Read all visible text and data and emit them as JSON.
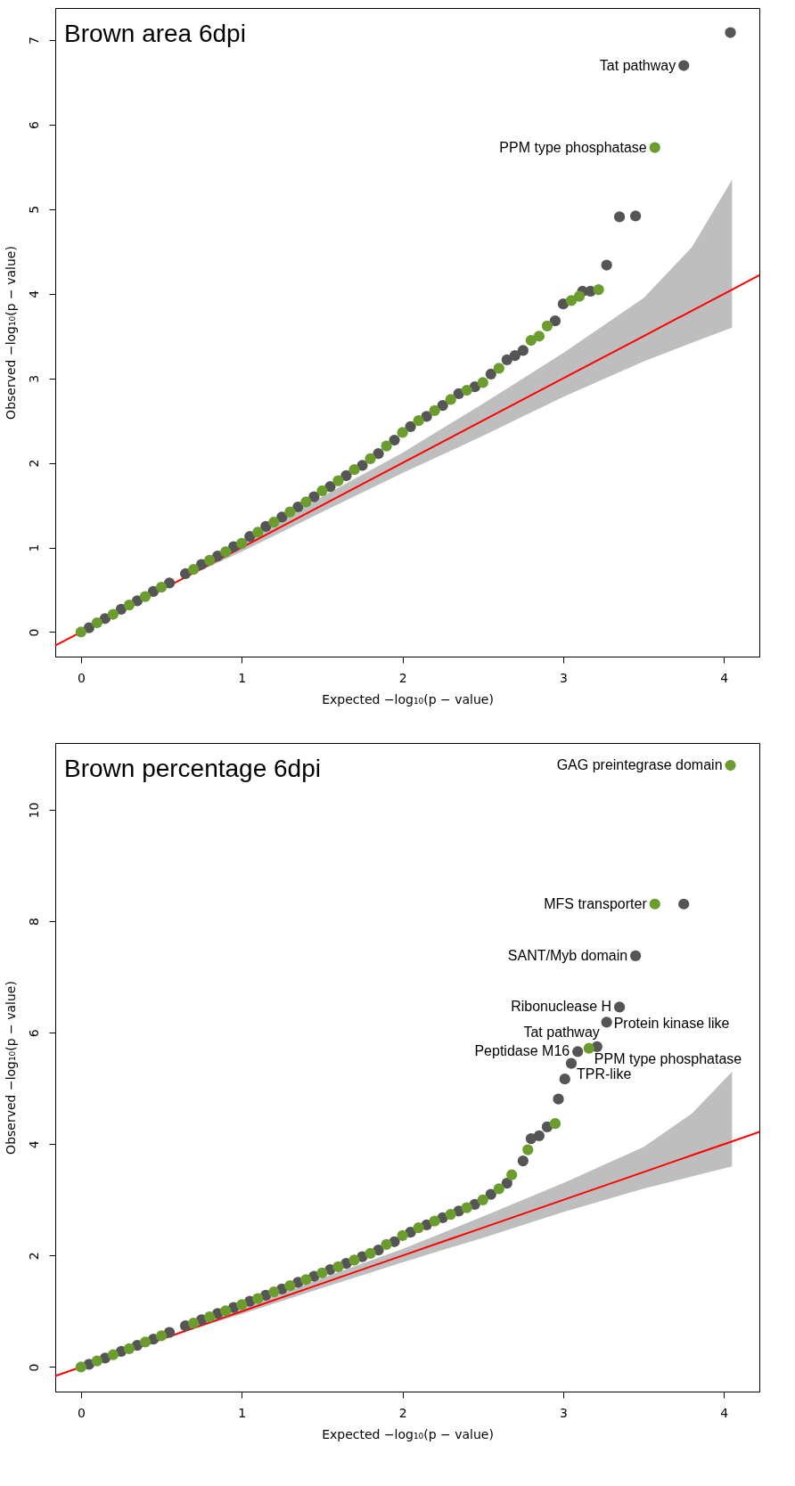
{
  "chart_data": [
    {
      "type": "scatter",
      "title": "Brown area 6dpi",
      "xlabel": "Expected  −log₁₀(p − value)",
      "ylabel": "Observed  −log₁₀(p − value)",
      "xlim": [
        -0.16,
        4.22
      ],
      "ylim": [
        -0.29,
        7.38
      ],
      "xticks": [
        0,
        1,
        2,
        3,
        4
      ],
      "yticks": [
        0,
        1,
        2,
        3,
        4,
        5,
        6,
        7
      ],
      "marker": "circle",
      "series": [
        {
          "color": "#555555",
          "x": [
            0.05,
            0.15,
            0.25,
            0.35,
            0.45,
            0.55,
            0.65,
            0.75,
            0.85,
            0.95,
            1.05,
            1.15,
            1.25,
            1.35,
            1.45,
            1.55,
            1.65,
            1.75,
            1.85,
            1.95,
            2.05,
            2.15,
            2.25,
            2.35,
            2.45,
            2.55,
            2.65,
            2.7,
            2.75,
            2.95,
            3.0,
            3.12,
            3.17,
            3.27,
            3.35,
            3.45,
            3.75,
            4.04
          ],
          "values": [
            0.05,
            0.16,
            0.27,
            0.37,
            0.48,
            0.58,
            0.69,
            0.8,
            0.9,
            1.01,
            1.13,
            1.25,
            1.36,
            1.48,
            1.6,
            1.72,
            1.85,
            1.97,
            2.11,
            2.27,
            2.43,
            2.55,
            2.68,
            2.82,
            2.9,
            3.05,
            3.22,
            3.27,
            3.33,
            3.68,
            3.88,
            4.03,
            4.03,
            4.34,
            4.91,
            4.92,
            6.7,
            7.09
          ]
        },
        {
          "color": "#6a9c2e",
          "x": [
            0,
            0.1,
            0.2,
            0.3,
            0.4,
            0.5,
            0.7,
            0.8,
            0.9,
            1.0,
            1.1,
            1.2,
            1.3,
            1.4,
            1.5,
            1.6,
            1.7,
            1.8,
            1.9,
            2.0,
            2.1,
            2.2,
            2.3,
            2.4,
            2.5,
            2.6,
            2.8,
            2.85,
            2.9,
            3.05,
            3.1,
            3.22,
            3.57
          ],
          "values": [
            0,
            0.11,
            0.21,
            0.32,
            0.42,
            0.53,
            0.74,
            0.85,
            0.95,
            1.05,
            1.18,
            1.3,
            1.42,
            1.54,
            1.67,
            1.79,
            1.92,
            2.05,
            2.2,
            2.36,
            2.5,
            2.62,
            2.75,
            2.86,
            2.95,
            3.12,
            3.45,
            3.5,
            3.62,
            3.92,
            3.97,
            4.05,
            5.73
          ]
        },
        {
          "type": "line",
          "marker": "none",
          "color": "#ff0000",
          "x": [
            -0.16,
            0.6,
            1,
            1.5,
            2,
            2.5,
            3,
            3.5,
            3.8,
            4.05,
            4.22
          ],
          "values": [
            -0.16,
            0.6,
            1,
            1.5,
            2,
            2.5,
            3,
            3.5,
            3.8,
            4.05,
            4.22
          ],
          "lower": [
            null,
            0.6,
            0.95,
            1.42,
            1.88,
            2.32,
            2.78,
            3.2,
            3.42,
            3.6,
            null
          ],
          "upper": [
            null,
            0.6,
            1.05,
            1.6,
            2.12,
            2.7,
            3.3,
            3.95,
            4.55,
            5.35,
            null
          ]
        }
      ],
      "annotations": [
        {
          "text": "Tat pathway",
          "x": 3.75,
          "y": 6.7
        },
        {
          "text": "PPM type phosphatase",
          "x": 3.57,
          "y": 5.73
        }
      ]
    },
    {
      "type": "scatter",
      "title": "Brown percentage 6dpi",
      "xlabel": "Expected  −log₁₀(p − value)",
      "ylabel": "Observed  −log₁₀(p − value)",
      "xlim": [
        -0.16,
        4.22
      ],
      "ylim": [
        -0.44,
        11.2
      ],
      "xticks": [
        0,
        1,
        2,
        3,
        4
      ],
      "yticks": [
        0,
        2,
        4,
        6,
        8,
        10
      ],
      "marker": "circle",
      "series": [
        {
          "color": "#555555",
          "x": [
            0.05,
            0.15,
            0.25,
            0.35,
            0.45,
            0.55,
            0.65,
            0.75,
            0.85,
            0.95,
            1.05,
            1.15,
            1.25,
            1.35,
            1.45,
            1.55,
            1.65,
            1.75,
            1.85,
            1.95,
            2.05,
            2.15,
            2.25,
            2.35,
            2.45,
            2.55,
            2.65,
            2.75,
            2.8,
            2.85,
            2.9,
            2.97,
            3.01,
            3.05,
            3.09,
            3.21,
            3.27,
            3.35,
            3.45,
            3.75
          ],
          "values": [
            0.05,
            0.16,
            0.28,
            0.39,
            0.5,
            0.62,
            0.74,
            0.85,
            0.96,
            1.07,
            1.18,
            1.29,
            1.4,
            1.52,
            1.63,
            1.75,
            1.86,
            1.98,
            2.1,
            2.25,
            2.42,
            2.55,
            2.68,
            2.8,
            2.92,
            3.1,
            3.3,
            3.7,
            4.1,
            4.15,
            4.31,
            4.81,
            5.17,
            5.45,
            5.66,
            5.75,
            6.19,
            6.46,
            7.38,
            8.31
          ]
        },
        {
          "color": "#6a9c2e",
          "x": [
            0,
            0.1,
            0.2,
            0.3,
            0.4,
            0.5,
            0.7,
            0.8,
            0.9,
            1.0,
            1.1,
            1.2,
            1.3,
            1.4,
            1.5,
            1.6,
            1.7,
            1.8,
            1.9,
            2.0,
            2.1,
            2.2,
            2.3,
            2.4,
            2.5,
            2.6,
            2.68,
            2.78,
            2.95,
            3.16,
            3.57,
            4.04
          ],
          "values": [
            0,
            0.11,
            0.22,
            0.33,
            0.45,
            0.56,
            0.79,
            0.9,
            1.01,
            1.12,
            1.23,
            1.35,
            1.46,
            1.57,
            1.69,
            1.8,
            1.92,
            2.04,
            2.2,
            2.36,
            2.5,
            2.62,
            2.74,
            2.86,
            3.0,
            3.2,
            3.45,
            3.9,
            4.37,
            5.72,
            8.31,
            10.8
          ]
        },
        {
          "type": "line",
          "marker": "none",
          "color": "#ff0000",
          "x": [
            -0.16,
            0.6,
            1,
            1.5,
            2,
            2.5,
            3,
            3.5,
            3.8,
            4.05,
            4.22
          ],
          "values": [
            -0.16,
            0.6,
            1,
            1.5,
            2,
            2.5,
            3,
            3.5,
            3.8,
            4.05,
            4.22
          ],
          "lower": [
            null,
            0.6,
            0.95,
            1.42,
            1.88,
            2.32,
            2.78,
            3.2,
            3.42,
            3.6,
            null
          ],
          "upper": [
            null,
            0.6,
            1.05,
            1.6,
            2.12,
            2.7,
            3.3,
            3.95,
            4.55,
            5.3,
            null
          ]
        }
      ],
      "annotations": [
        {
          "text": "GAG preintegrase domain",
          "x": 4.04,
          "y": 10.8
        },
        {
          "text": "MFS transporter",
          "x": 3.57,
          "y": 8.31
        },
        {
          "text": "SANT/Myb domain",
          "x": 3.45,
          "y": 7.38
        },
        {
          "text": "Ribonuclease H",
          "x": 3.35,
          "y": 6.46
        },
        {
          "text": "Protein kinase like",
          "x": 3.27,
          "y": 6.19
        },
        {
          "text": "Tat pathway",
          "x": 3.21,
          "y": 5.75
        },
        {
          "text": "Peptidase M16",
          "x": 3.09,
          "y": 5.66
        },
        {
          "text": "PPM type phosphatase",
          "x": 3.16,
          "y": 5.72
        },
        {
          "text": "TPR-like",
          "x": 3.05,
          "y": 5.45
        }
      ]
    }
  ]
}
